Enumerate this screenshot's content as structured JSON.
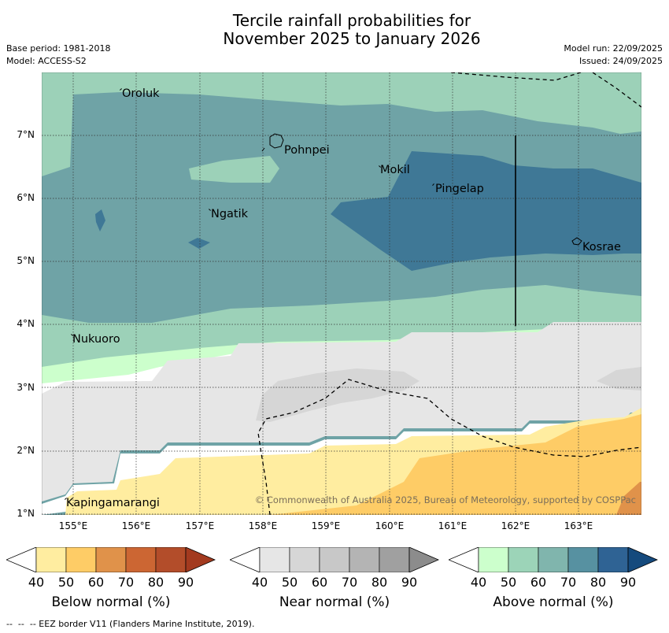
{
  "header": {
    "title_line1": "Tercile rainfall probabilities for",
    "title_line2": "November 2025 to January 2026",
    "base_period": "Base period: 1981-2018",
    "model": "Model: ACCESS-S2",
    "model_run": "Model run: 22/09/2025",
    "issued": "Issued: 24/09/2025"
  },
  "axes": {
    "lat_labels": [
      "7°N",
      "6°N",
      "5°N",
      "4°N",
      "3°N",
      "2°N",
      "1°N"
    ],
    "lon_labels": [
      "155°E",
      "156°E",
      "157°E",
      "158°E",
      "159°E",
      "160°E",
      "161°E",
      "162°E",
      "163°E"
    ]
  },
  "places": [
    "Oroluk",
    "Pohnpei",
    "Mokil",
    "Pingelap",
    "Ngatik",
    "Kosrae",
    "Nukuoro",
    "Kapingamarangi"
  ],
  "copyright": "© Commonwealth of Australia 2025, Bureau of Meteorology, supported by COSPPac",
  "colorbars": {
    "below": {
      "title": "Below normal (%)",
      "colors": [
        "#ffeda0",
        "#fecc66",
        "#e0924a",
        "#cc6633",
        "#b34d2a",
        "#a33a1f"
      ]
    },
    "near": {
      "title": "Near normal (%)",
      "colors": [
        "#e6e6e6",
        "#d6d6d6",
        "#c8c8c8",
        "#b4b4b4",
        "#a0a0a0",
        "#8c8c8c"
      ]
    },
    "above": {
      "title": "Above normal (%)",
      "colors": [
        "#ccffcc",
        "#9cd4b8",
        "#80b5ad",
        "#5791a1",
        "#2f6394",
        "#154a7d"
      ]
    },
    "ticks": [
      "40",
      "50",
      "60",
      "70",
      "80",
      "90"
    ]
  },
  "legend_text": "--  --  -- EEZ border V11 (Flanders Marine Institute, 2019)."
}
